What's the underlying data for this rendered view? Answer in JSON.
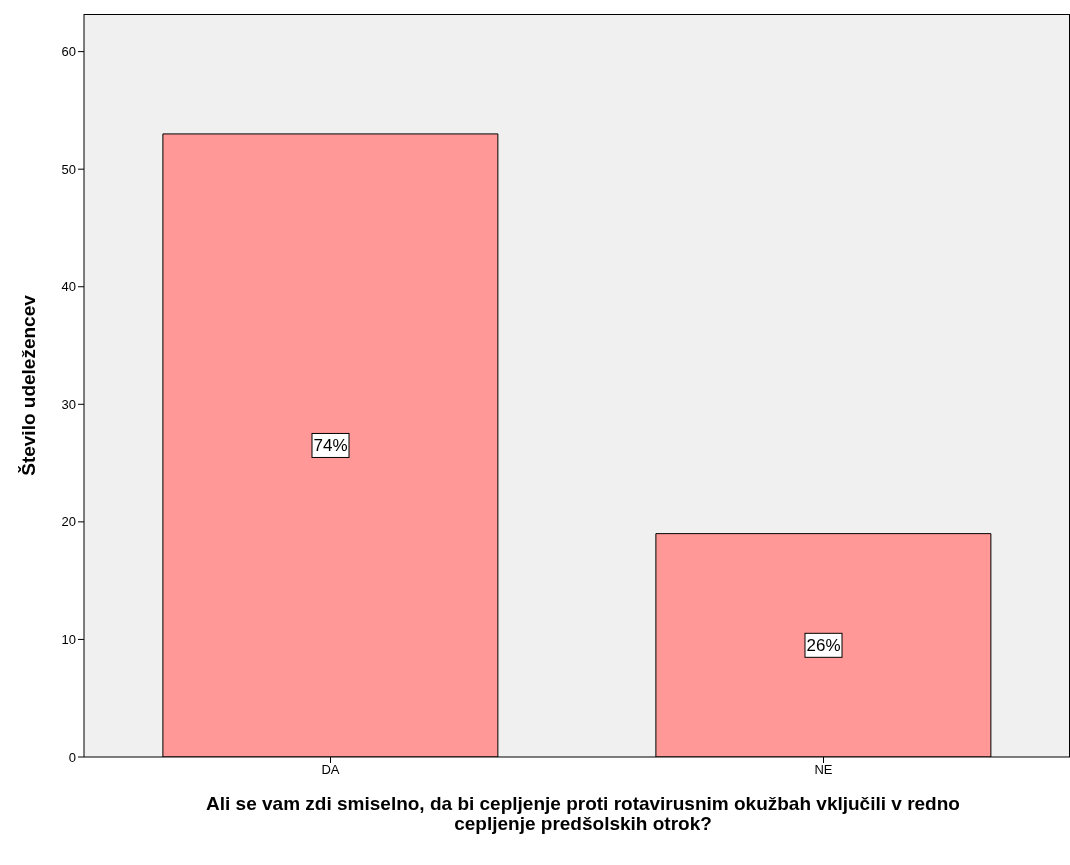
{
  "chart_data": {
    "type": "bar",
    "ylabel": "Število udeležencev",
    "xlabel": "Ali se vam zdi smiselno, da bi cepljenje proti rotavirusnim okužbah vključili v redno cepljenje predšolskih otrok?",
    "categories": [
      "DA",
      "NE"
    ],
    "values": [
      53,
      19
    ],
    "color": "#ff9896",
    "ylim": [
      0,
      63.2
    ],
    "yticks": [
      0,
      10,
      20,
      30,
      40,
      50,
      60
    ],
    "annotations": [
      {
        "text": "74%",
        "x": "DA",
        "y": 26.5
      },
      {
        "text": "26%",
        "x": "NE",
        "y": 9.5
      }
    ]
  }
}
